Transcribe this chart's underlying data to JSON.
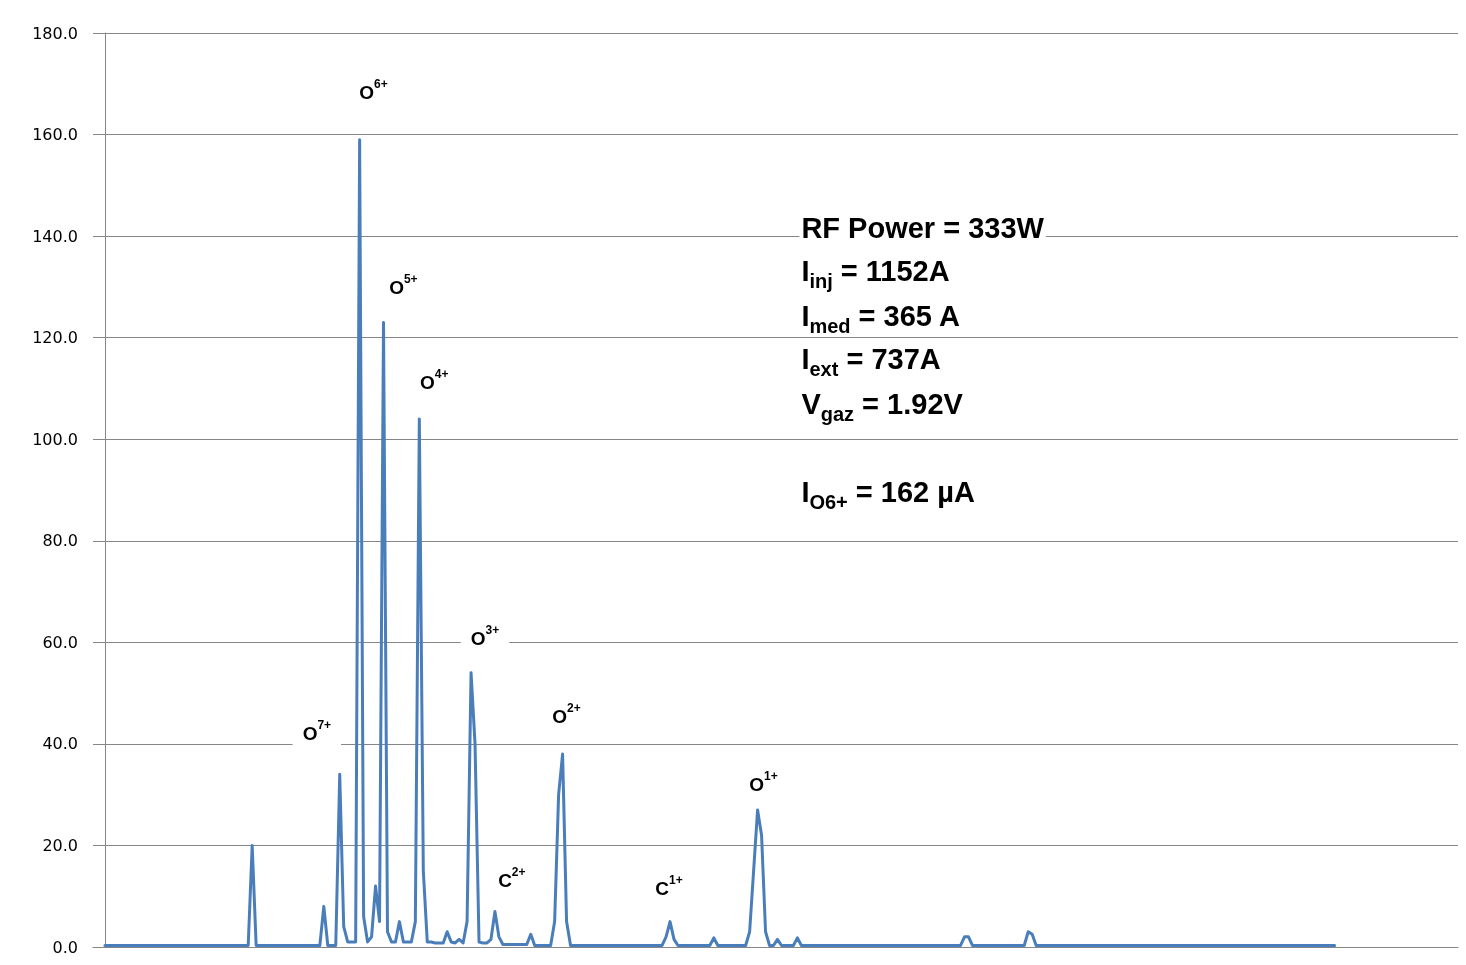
{
  "chart_data": {
    "type": "line",
    "categories": [
      null,
      null,
      null,
      null,
      null,
      null,
      null,
      null,
      null,
      null,
      null,
      null,
      null,
      null,
      null,
      null,
      null,
      null,
      null,
      null,
      null,
      null,
      null,
      null,
      null,
      null,
      null,
      null,
      null,
      null,
      null,
      null,
      null,
      null,
      null,
      null,
      null,
      null,
      null,
      null,
      null,
      null,
      null,
      null,
      null,
      null,
      null,
      null,
      null,
      null,
      null,
      null,
      null,
      null,
      null,
      null,
      null,
      null,
      null,
      null,
      null,
      null,
      null,
      null,
      null,
      null,
      null,
      null,
      null,
      null,
      null,
      null,
      null,
      null,
      null,
      null,
      null,
      null,
      null,
      null,
      null,
      null,
      null,
      null,
      null,
      null,
      null,
      null,
      null,
      null,
      null,
      null,
      null,
      null,
      null,
      null,
      null,
      null,
      null,
      null,
      null,
      null,
      null,
      null,
      null,
      null,
      null,
      null,
      null,
      null,
      null,
      null,
      null,
      null,
      null,
      null,
      null,
      null,
      null,
      null,
      null,
      null,
      null,
      null,
      null,
      null,
      null,
      null,
      null,
      null,
      null,
      null,
      null,
      null,
      null,
      null,
      null,
      null,
      null,
      null,
      null,
      null,
      null,
      null,
      null,
      null,
      null,
      null,
      null,
      null,
      null,
      null,
      null,
      null,
      null,
      null,
      null,
      null,
      null,
      null,
      null,
      null,
      null,
      null,
      null,
      null,
      null,
      null,
      null,
      null,
      null,
      null,
      null,
      null,
      null,
      null,
      null,
      null,
      null,
      null,
      null,
      null,
      null,
      null,
      null,
      null,
      null,
      null,
      null,
      null,
      null,
      null,
      null,
      null,
      null,
      null,
      null,
      null,
      null,
      null,
      null,
      null,
      null,
      null,
      null,
      null,
      null,
      null,
      null,
      null,
      null,
      null,
      null,
      null,
      null,
      null,
      null,
      null,
      null,
      null,
      null,
      null,
      null,
      null,
      null,
      null,
      null,
      null,
      null,
      null,
      null,
      null,
      null,
      null,
      null,
      null,
      null,
      null,
      null,
      null,
      null,
      null,
      null,
      null,
      null,
      null,
      null,
      null,
      null,
      null,
      null,
      null,
      null,
      null,
      null,
      null,
      null,
      null,
      null,
      null,
      null,
      null,
      null,
      null,
      null,
      null,
      null,
      null,
      null,
      null,
      null,
      null,
      null,
      null,
      null,
      null,
      null,
      null,
      null,
      null,
      null,
      null,
      null,
      null,
      null,
      null,
      null,
      null,
      null,
      null,
      null,
      null,
      null,
      null,
      null,
      null,
      null,
      null,
      null,
      null,
      null,
      null,
      null,
      null,
      null,
      null,
      null,
      null,
      null,
      null
    ],
    "series": [
      {
        "color": "#4a7ebb",
        "values": [
          0.3,
          0.3,
          0.3,
          0.3,
          0.3,
          0.3,
          0.3,
          0.3,
          0.3,
          0.3,
          0.3,
          0.3,
          0.3,
          0.3,
          0.3,
          0.3,
          0.3,
          0.3,
          0.3,
          0.3,
          0.3,
          0.3,
          0.3,
          0.3,
          0.3,
          0.3,
          0.3,
          0.3,
          0.3,
          0.3,
          0.3,
          0.3,
          0.3,
          0.3,
          0.3,
          0.3,
          0.3,
          20,
          0.3,
          0.3,
          0.3,
          0.3,
          0.3,
          0.3,
          0.3,
          0.3,
          0.3,
          0.3,
          0.3,
          0.3,
          0.3,
          0.3,
          0.3,
          0.3,
          0.3,
          8,
          0.3,
          0.3,
          0.3,
          34,
          4,
          1,
          1,
          1,
          159,
          6,
          1,
          2,
          12,
          5,
          123,
          3,
          1,
          1,
          5,
          1,
          1,
          1,
          5,
          104,
          15,
          1,
          1,
          0.8,
          0.8,
          0.8,
          3,
          1,
          0.8,
          1.5,
          0.8,
          5,
          54,
          40,
          1,
          0.8,
          0.8,
          1.5,
          7,
          2,
          0.5,
          0.5,
          0.5,
          0.5,
          0.5,
          0.5,
          0.5,
          2.5,
          0.3,
          0.3,
          0.3,
          0.3,
          0.3,
          5,
          30,
          38,
          5,
          0.3,
          0.3,
          0.3,
          0.3,
          0.3,
          0.3,
          0.3,
          0.3,
          0.3,
          0.3,
          0.3,
          0.3,
          0.3,
          0.3,
          0.3,
          0.3,
          0.3,
          0.3,
          0.3,
          0.3,
          0.3,
          0.3,
          0.3,
          0.3,
          2,
          5,
          1.5,
          0.3,
          0.3,
          0.3,
          0.3,
          0.3,
          0.3,
          0.3,
          0.3,
          0.3,
          1.8,
          0.3,
          0.3,
          0.3,
          0.3,
          0.3,
          0.3,
          0.3,
          0.3,
          3,
          15,
          27,
          22,
          3,
          0.3,
          0.3,
          1.5,
          0.3,
          0.3,
          0.3,
          0.3,
          1.8,
          0.3,
          0.3,
          0.3,
          0.3,
          0.3,
          0.3,
          0.3,
          0.3,
          0.3,
          0.3,
          0.3,
          0.3,
          0.3,
          0.3,
          0.3,
          0.3,
          0.3,
          0.3,
          0.3,
          0.3,
          0.3,
          0.3,
          0.3,
          0.3,
          0.3,
          0.3,
          0.3,
          0.3,
          0.3,
          0.3,
          0.3,
          0.3,
          0.3,
          0.3,
          0.3,
          0.3,
          0.3,
          0.3,
          0.3,
          0.3,
          0.3,
          2,
          2,
          0.3,
          0.3,
          0.3,
          0.3,
          0.3,
          0.3,
          0.3,
          0.3,
          0.3,
          0.3,
          0.3,
          0.3,
          0.3,
          0.3,
          3,
          2.5,
          0.3,
          0.3,
          0.3,
          0.3,
          0.3,
          0.3,
          0.3,
          0.3,
          0.3,
          0.3,
          0.3,
          0.3,
          0.3,
          0.3,
          0.3,
          0.3,
          0.3,
          0.3,
          0.3,
          0.3,
          0.3,
          0.3,
          0.3,
          0.3,
          0.3,
          0.3,
          0.3,
          0.3,
          0.3,
          0.3,
          0.3,
          0.3,
          0.3,
          0.3,
          0.3,
          0.3,
          0.3,
          0.3,
          0.3,
          0.3,
          0.3,
          0.3,
          0.3,
          0.3,
          0.3,
          0.3,
          0.3,
          0.3,
          0.3,
          0.3,
          0.3,
          0.3,
          0.3,
          0.3,
          0.3,
          0.3,
          0.3,
          0.3,
          0.3,
          0.3,
          0.3,
          0.3,
          0.3,
          0.3,
          0.3,
          0.3,
          0.3,
          0.3,
          0.3,
          0.3,
          0.3,
          0.3,
          0.3,
          0.3,
          0.3,
          0.3
        ]
      }
    ],
    "ylim": [
      0,
      180
    ],
    "yticks": [
      {
        "value": 0,
        "label": "0.0"
      },
      {
        "value": 20,
        "label": "20.0"
      },
      {
        "value": 40,
        "label": "40.0"
      },
      {
        "value": 60,
        "label": "60.0"
      },
      {
        "value": 80,
        "label": "80.0"
      },
      {
        "value": 100,
        "label": "100.0"
      },
      {
        "value": 120,
        "label": "120.0"
      },
      {
        "value": 140,
        "label": "140.0"
      },
      {
        "value": 160,
        "label": "160.0"
      },
      {
        "value": 180,
        "label": "180.0"
      }
    ],
    "grid": "y",
    "marker": "none",
    "line_style": "solid",
    "tick_labels": "y",
    "annotations": [
      "O$^{6+}$",
      "O$^{5+}$",
      "O$^{4+}$",
      "O$^{3+}$",
      "O$^{2+}$",
      "O$^{7+}$",
      "C$^{2+}$",
      "C$^{1+}$",
      "O$^{1+}$",
      "RF Power = 333W",
      "I$_{inj}$ = 1152A",
      "I$_{med}$ = 365 A",
      "I$_{ext}$ = 737A",
      "V$_{gaz}$ = 1.92V",
      "I$_{O6+}$ = 162 µA"
    ]
  }
}
